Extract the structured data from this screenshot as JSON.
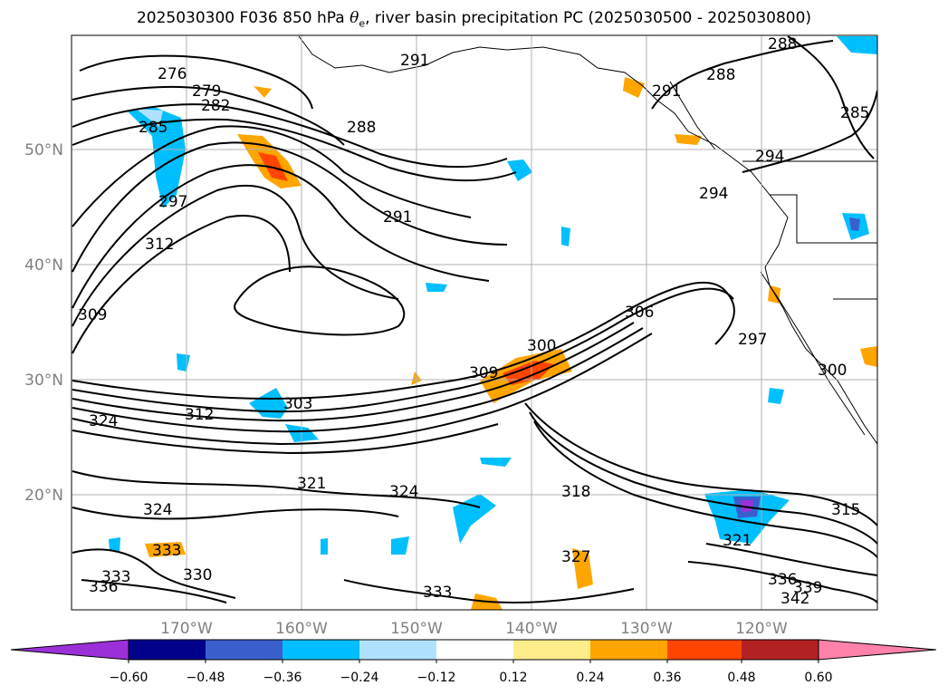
{
  "title": {
    "prefix": "2025030300 F036 850 hPa ",
    "theta": "θ",
    "sub": "e",
    "suffix": ", river basin precipitation PC (2025030500 - 2025030800)"
  },
  "map": {
    "lon_labels": [
      "170°W",
      "160°W",
      "150°W",
      "140°W",
      "130°W",
      "120°W"
    ],
    "lat_labels": [
      "50°N",
      "40°N",
      "30°N",
      "20°N"
    ],
    "contour_labels": [
      "276",
      "279",
      "282",
      "285",
      "288",
      "288",
      "291",
      "291",
      "291",
      "288",
      "285",
      "294",
      "294",
      "297",
      "297",
      "300",
      "300",
      "303",
      "306",
      "309",
      "309",
      "312",
      "312",
      "315",
      "318",
      "321",
      "321",
      "324",
      "324",
      "324",
      "327",
      "330",
      "333",
      "333",
      "336",
      "336",
      "339",
      "342",
      "333"
    ]
  },
  "colorbar": {
    "tick_labels": [
      "−0.60",
      "−0.48",
      "−0.36",
      "−0.24",
      "−0.12",
      "0.12",
      "0.24",
      "0.36",
      "0.48",
      "0.60"
    ],
    "colors": [
      "#9b30d9",
      "#00008b",
      "#3a5fcd",
      "#00bfff",
      "#b0e2ff",
      "#ffffff",
      "#ffec8b",
      "#ffa500",
      "#ff4500",
      "#b22222",
      "#ff82ab"
    ]
  }
}
